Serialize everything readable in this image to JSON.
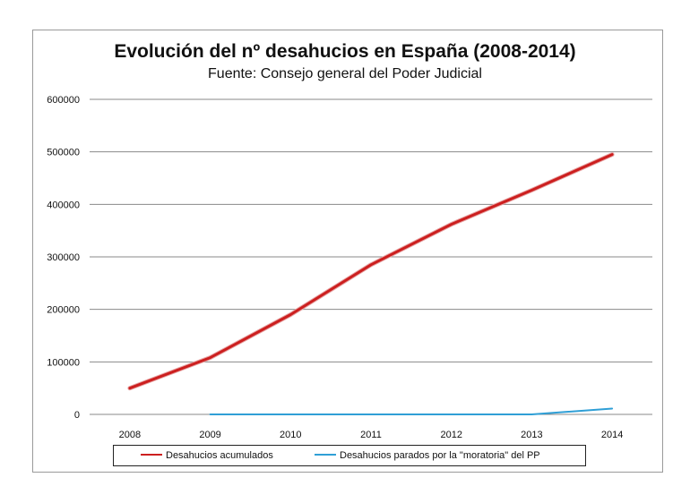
{
  "chart_data": {
    "type": "line",
    "title": "Evolución del nº desahucios en España (2008-2014)",
    "subtitle": "Fuente: Consejo general del Poder Judicial",
    "categories": [
      "2008",
      "2009",
      "2010",
      "2011",
      "2012",
      "2013",
      "2014"
    ],
    "ylim": [
      0,
      600000
    ],
    "yticks": [
      "0",
      "100000",
      "200000",
      "300000",
      "400000",
      "500000",
      "600000"
    ],
    "grid": true,
    "legend_position": "bottom",
    "series": [
      {
        "name": "Desahucios acumulados",
        "color": "#cc1f1f",
        "values": [
          50000,
          108000,
          190000,
          285000,
          362000,
          427000,
          495000
        ]
      },
      {
        "name": "Desahucios parados por la \"moratoria\"  del PP",
        "color": "#2f9fd6",
        "values": [
          null,
          0,
          0,
          0,
          0,
          0,
          11000
        ]
      }
    ]
  }
}
